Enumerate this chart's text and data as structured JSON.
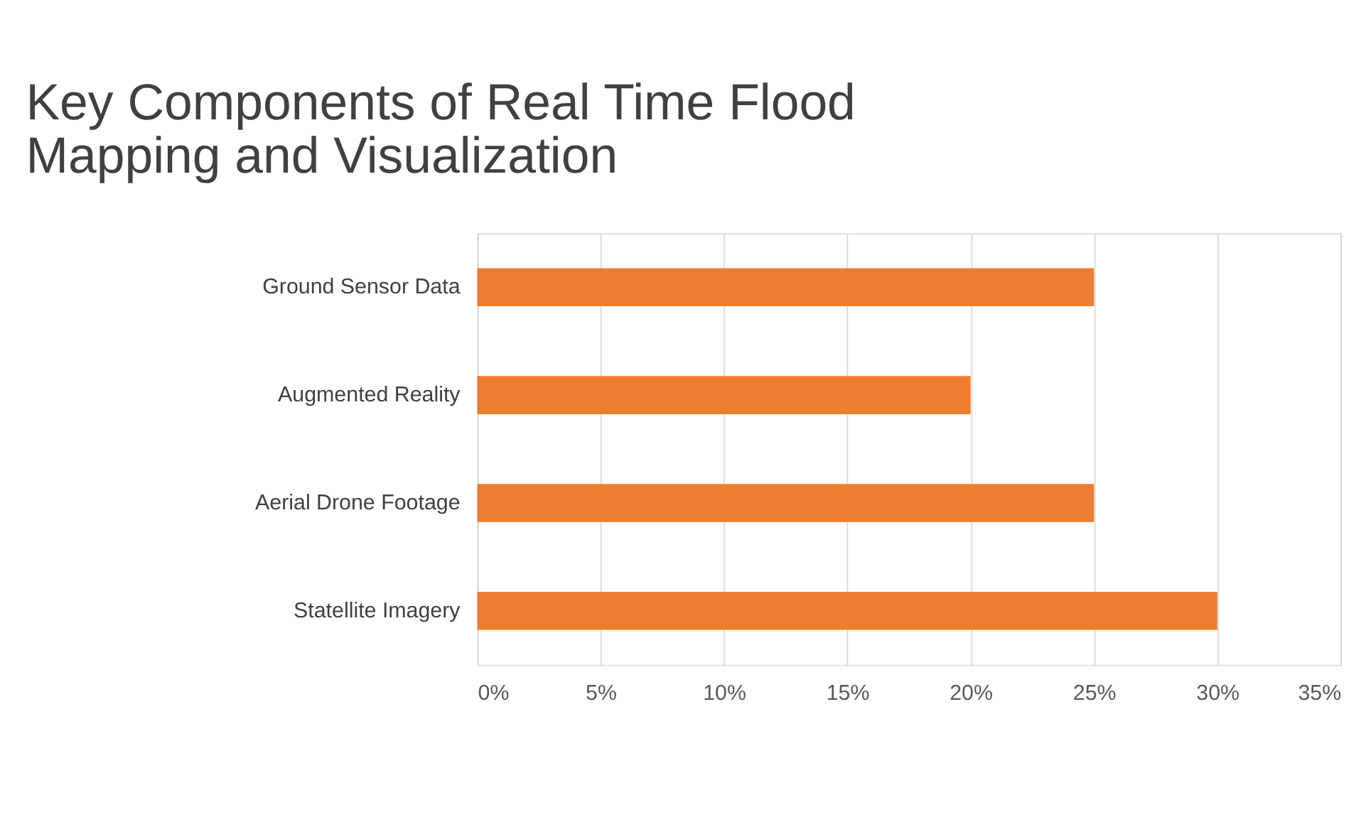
{
  "chart_data": {
    "type": "bar",
    "orientation": "horizontal",
    "title": "Key Components of Real Time Flood Mapping and Visualization",
    "categories": [
      "Ground Sensor Data",
      "Augmented Reality",
      "Aerial Drone Footage",
      "Statellite Imagery"
    ],
    "values": [
      25,
      20,
      25,
      30
    ],
    "color": "#ed7d31",
    "xlim": [
      0,
      35
    ],
    "xticks": [
      {
        "value": 0,
        "label": "0%"
      },
      {
        "value": 5,
        "label": "5%"
      },
      {
        "value": 10,
        "label": "10%"
      },
      {
        "value": 15,
        "label": "15%"
      },
      {
        "value": 20,
        "label": "20%"
      },
      {
        "value": 25,
        "label": "25%"
      },
      {
        "value": 30,
        "label": "30%"
      },
      {
        "value": 35,
        "label": "35%"
      }
    ],
    "grid": "x"
  }
}
